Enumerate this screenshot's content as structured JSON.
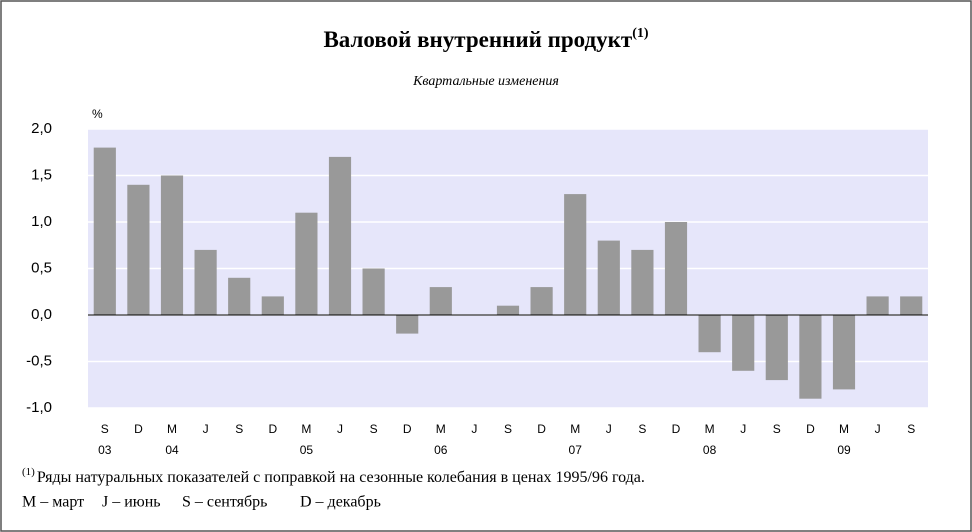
{
  "chart_data": {
    "type": "bar",
    "title": "Валовой внутренний продукт",
    "title_marker": "(1)",
    "subtitle": "Квартальные изменения",
    "y_unit": "%",
    "categories": [
      "S",
      "D",
      "M",
      "J",
      "S",
      "D",
      "M",
      "J",
      "S",
      "D",
      "M",
      "J",
      "S",
      "D",
      "M",
      "J",
      "S",
      "D",
      "M",
      "J",
      "S",
      "D",
      "M",
      "J",
      "S"
    ],
    "year_labels": [
      "03",
      null,
      "04",
      null,
      null,
      null,
      "05",
      null,
      null,
      null,
      "06",
      null,
      null,
      null,
      "07",
      null,
      null,
      null,
      "08",
      null,
      null,
      null,
      "09",
      null,
      null
    ],
    "values": [
      1.8,
      1.4,
      1.5,
      0.7,
      0.4,
      0.2,
      1.1,
      1.7,
      0.5,
      -0.2,
      0.3,
      0,
      0.1,
      0.3,
      1.3,
      0.8,
      0.7,
      1.0,
      -0.4,
      -0.6,
      -0.7,
      -0.9,
      -0.8,
      0.2,
      0.2
    ],
    "color": "#999999",
    "ylim": [
      -1.0,
      2.0
    ],
    "yticks": [
      {
        "value": -1.0,
        "label": "-1,0"
      },
      {
        "value": -0.5,
        "label": "-0,5"
      },
      {
        "value": 0,
        "label": "0,0"
      },
      {
        "value": 0.5,
        "label": "0,5"
      },
      {
        "value": 1.0,
        "label": "1,0"
      },
      {
        "value": 1.5,
        "label": "1,5"
      },
      {
        "value": 2.0,
        "label": "2,0"
      }
    ],
    "grid": true,
    "footnote_marker": "(1)",
    "footnote": "Ряды натуральных показателей с поправкой на сезонные колебания в ценах 1995/96 года.",
    "notes": [
      "M – март",
      "J – июнь",
      "S – сентябрь",
      "D – декабрь"
    ]
  }
}
